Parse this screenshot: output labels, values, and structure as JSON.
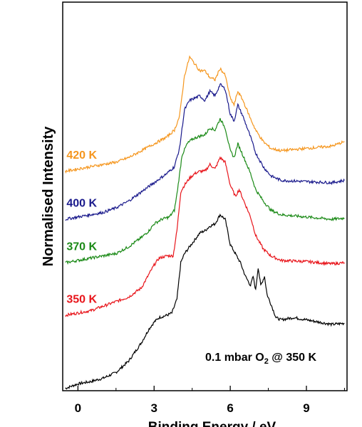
{
  "chart_data": {
    "type": "line",
    "title": "",
    "xlabel": "Binding Energy / eV",
    "ylabel": "Normalised Intensity",
    "xlim": [
      -0.6,
      10.6
    ],
    "ylim": [
      0,
      17
    ],
    "x_ticks": [
      0,
      3,
      6,
      9
    ],
    "y_ticks_shown": false,
    "grid": false,
    "annotation": {
      "text_main": "0.1 mbar O",
      "text_sub": "2",
      "text_tail": " @ 350 K"
    },
    "series": [
      {
        "name": "",
        "color": "#000000",
        "points": [
          [
            -0.5,
            0.1
          ],
          [
            0,
            0.3
          ],
          [
            0.5,
            0.4
          ],
          [
            1,
            0.55
          ],
          [
            1.5,
            0.8
          ],
          [
            2,
            1.3
          ],
          [
            2.5,
            2.1
          ],
          [
            2.8,
            2.7
          ],
          [
            3,
            3.0
          ],
          [
            3.2,
            3.2
          ],
          [
            3.5,
            3.3
          ],
          [
            3.7,
            3.4
          ],
          [
            3.9,
            4.0
          ],
          [
            4.05,
            5.6
          ],
          [
            4.2,
            6.0
          ],
          [
            4.4,
            6.3
          ],
          [
            4.6,
            6.6
          ],
          [
            4.8,
            6.9
          ],
          [
            5,
            7.0
          ],
          [
            5.2,
            7.2
          ],
          [
            5.4,
            7.3
          ],
          [
            5.6,
            7.7
          ],
          [
            5.8,
            7.5
          ],
          [
            6,
            6.4
          ],
          [
            6.2,
            6.0
          ],
          [
            6.4,
            5.6
          ],
          [
            6.6,
            5.0
          ],
          [
            6.8,
            4.6
          ],
          [
            6.9,
            5.0
          ],
          [
            7,
            4.4
          ],
          [
            7.1,
            5.4
          ],
          [
            7.2,
            4.6
          ],
          [
            7.35,
            5.0
          ],
          [
            7.45,
            4.2
          ],
          [
            7.6,
            3.8
          ],
          [
            7.8,
            3.2
          ],
          [
            8,
            3.1
          ],
          [
            8.5,
            3.2
          ],
          [
            9,
            3.1
          ],
          [
            10,
            2.9
          ],
          [
            10.5,
            2.95
          ]
        ]
      },
      {
        "name": "350 K",
        "color": "#e8151b",
        "points": [
          [
            -0.5,
            3.3
          ],
          [
            0,
            3.4
          ],
          [
            0.5,
            3.5
          ],
          [
            1,
            3.7
          ],
          [
            1.5,
            3.9
          ],
          [
            2,
            4.1
          ],
          [
            2.5,
            4.5
          ],
          [
            2.8,
            5.1
          ],
          [
            3,
            5.5
          ],
          [
            3.2,
            5.8
          ],
          [
            3.5,
            5.9
          ],
          [
            3.75,
            5.9
          ],
          [
            3.9,
            7.0
          ],
          [
            4.05,
            8.7
          ],
          [
            4.2,
            9.0
          ],
          [
            4.4,
            9.3
          ],
          [
            4.6,
            9.5
          ],
          [
            4.8,
            9.6
          ],
          [
            5,
            9.6
          ],
          [
            5.2,
            9.9
          ],
          [
            5.4,
            9.7
          ],
          [
            5.6,
            10.2
          ],
          [
            5.8,
            10.0
          ],
          [
            6,
            9.0
          ],
          [
            6.2,
            8.5
          ],
          [
            6.35,
            8.8
          ],
          [
            6.5,
            8.4
          ],
          [
            6.8,
            7.6
          ],
          [
            7,
            6.8
          ],
          [
            7.3,
            6.2
          ],
          [
            7.6,
            5.9
          ],
          [
            8,
            5.7
          ],
          [
            9,
            5.65
          ],
          [
            10,
            5.55
          ],
          [
            10.5,
            5.6
          ]
        ]
      },
      {
        "name": "370 K",
        "color": "#1b8a17",
        "points": [
          [
            -0.5,
            5.6
          ],
          [
            0,
            5.7
          ],
          [
            0.5,
            5.8
          ],
          [
            1,
            5.9
          ],
          [
            1.5,
            6.0
          ],
          [
            2,
            6.3
          ],
          [
            2.5,
            6.7
          ],
          [
            2.8,
            7.0
          ],
          [
            3,
            7.3
          ],
          [
            3.3,
            7.5
          ],
          [
            3.6,
            7.6
          ],
          [
            3.8,
            7.9
          ],
          [
            3.9,
            8.6
          ],
          [
            4.1,
            10.3
          ],
          [
            4.3,
            10.8
          ],
          [
            4.5,
            11.0
          ],
          [
            4.7,
            11.1
          ],
          [
            5,
            11.2
          ],
          [
            5.2,
            11.5
          ],
          [
            5.4,
            11.4
          ],
          [
            5.6,
            11.9
          ],
          [
            5.8,
            11.5
          ],
          [
            6,
            10.5
          ],
          [
            6.15,
            10.2
          ],
          [
            6.3,
            10.8
          ],
          [
            6.5,
            10.3
          ],
          [
            6.8,
            9.5
          ],
          [
            7,
            8.8
          ],
          [
            7.3,
            8.3
          ],
          [
            7.6,
            7.9
          ],
          [
            8,
            7.7
          ],
          [
            9,
            7.6
          ],
          [
            10,
            7.5
          ],
          [
            10.5,
            7.55
          ]
        ]
      },
      {
        "name": "400 K",
        "color": "#1a1a8c",
        "points": [
          [
            -0.5,
            7.5
          ],
          [
            0,
            7.6
          ],
          [
            0.5,
            7.7
          ],
          [
            1,
            7.8
          ],
          [
            1.5,
            8.0
          ],
          [
            2,
            8.3
          ],
          [
            2.5,
            8.7
          ],
          [
            3,
            9.1
          ],
          [
            3.5,
            9.5
          ],
          [
            3.8,
            9.8
          ],
          [
            4,
            10.6
          ],
          [
            4.2,
            12.3
          ],
          [
            4.4,
            12.7
          ],
          [
            4.6,
            12.8
          ],
          [
            4.8,
            12.9
          ],
          [
            5,
            12.7
          ],
          [
            5.2,
            13.1
          ],
          [
            5.4,
            12.9
          ],
          [
            5.6,
            13.4
          ],
          [
            5.8,
            13.2
          ],
          [
            6,
            12.1
          ],
          [
            6.15,
            11.8
          ],
          [
            6.3,
            12.5
          ],
          [
            6.5,
            12.0
          ],
          [
            6.8,
            11.1
          ],
          [
            7,
            10.4
          ],
          [
            7.3,
            9.8
          ],
          [
            7.6,
            9.4
          ],
          [
            8,
            9.2
          ],
          [
            9,
            9.15
          ],
          [
            10,
            9.1
          ],
          [
            10.5,
            9.2
          ]
        ]
      },
      {
        "name": "420 K",
        "color": "#f5961e",
        "points": [
          [
            -0.5,
            9.6
          ],
          [
            0,
            9.7
          ],
          [
            0.5,
            9.8
          ],
          [
            1,
            9.9
          ],
          [
            1.5,
            10.0
          ],
          [
            2,
            10.2
          ],
          [
            2.5,
            10.5
          ],
          [
            3,
            10.8
          ],
          [
            3.5,
            11.1
          ],
          [
            3.8,
            11.4
          ],
          [
            4,
            12.0
          ],
          [
            4.2,
            13.8
          ],
          [
            4.4,
            14.6
          ],
          [
            4.6,
            14.3
          ],
          [
            4.8,
            14.0
          ],
          [
            5,
            14.0
          ],
          [
            5.2,
            13.7
          ],
          [
            5.4,
            13.6
          ],
          [
            5.6,
            14.1
          ],
          [
            5.8,
            13.8
          ],
          [
            6,
            12.8
          ],
          [
            6.15,
            12.5
          ],
          [
            6.3,
            13.1
          ],
          [
            6.5,
            12.7
          ],
          [
            6.8,
            11.9
          ],
          [
            7,
            11.4
          ],
          [
            7.3,
            10.9
          ],
          [
            7.6,
            10.6
          ],
          [
            8,
            10.5
          ],
          [
            9,
            10.6
          ],
          [
            10,
            10.7
          ],
          [
            10.5,
            10.9
          ]
        ]
      }
    ]
  }
}
